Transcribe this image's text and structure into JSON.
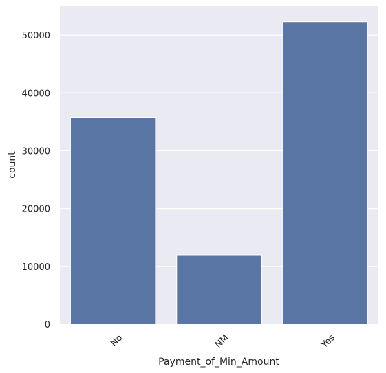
{
  "chart_data": {
    "type": "bar",
    "categories": [
      "No",
      "NM",
      "Yes"
    ],
    "values": [
      35700,
      12000,
      52300
    ],
    "xlabel": "Payment_of_Min_Amount",
    "ylabel": "count",
    "ylim": [
      0,
      55000
    ],
    "yticks": [
      0,
      10000,
      20000,
      30000,
      40000,
      50000
    ],
    "ytick_labels": [
      "0",
      "10000",
      "20000",
      "30000",
      "40000",
      "50000"
    ],
    "grid": true,
    "colors": {
      "bar": "#5975a4",
      "plot_background": "#eaeaf2",
      "grid": "#ffffff",
      "text": "#262626"
    }
  }
}
